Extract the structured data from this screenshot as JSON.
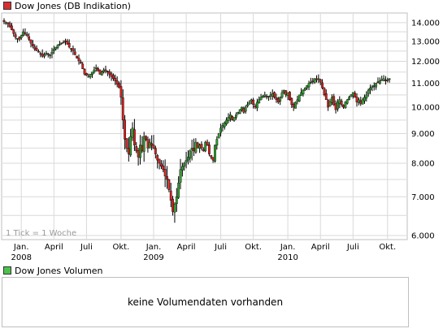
{
  "main_legend": {
    "label": "Dow Jones (DB Indikation)",
    "color": "#d83030"
  },
  "volume_legend": {
    "label": "Dow Jones Volumen",
    "color": "#4cc24c"
  },
  "volume_panel": {
    "message": "keine Volumendaten vorhanden"
  },
  "chart_note": "1 Tick = 1 Woche",
  "colors": {
    "up": "#2e9e2e",
    "down": "#d42020",
    "wick": "#000000",
    "grid": "#d9d9d9"
  },
  "chart_data": {
    "type": "candlestick",
    "title": "Dow Jones (DB Indikation)",
    "y_scale": "log",
    "ylim": [
      6000,
      14500
    ],
    "y_ticks": [
      {
        "value": 14000,
        "label": "14.000"
      },
      {
        "value": 13000,
        "label": "13.000"
      },
      {
        "value": 12000,
        "label": "12.000"
      },
      {
        "value": 11000,
        "label": "11.000"
      },
      {
        "value": 10000,
        "label": "10.000"
      },
      {
        "value": 9000,
        "label": "9.000"
      },
      {
        "value": 8000,
        "label": "8.000"
      },
      {
        "value": 7000,
        "label": "7.000"
      },
      {
        "value": 6000,
        "label": "6.000"
      }
    ],
    "x_ticks": [
      {
        "week": 9,
        "label": "Jan.",
        "year": "2008"
      },
      {
        "week": 26,
        "label": "April",
        "year": ""
      },
      {
        "week": 43,
        "label": "Juli",
        "year": ""
      },
      {
        "week": 61,
        "label": "Okt.",
        "year": ""
      },
      {
        "week": 78,
        "label": "Jan.",
        "year": "2009"
      },
      {
        "week": 95,
        "label": "April",
        "year": ""
      },
      {
        "week": 113,
        "label": "Juli",
        "year": ""
      },
      {
        "week": 130,
        "label": "Okt.",
        "year": ""
      },
      {
        "week": 148,
        "label": "Jan.",
        "year": "2010"
      },
      {
        "week": 165,
        "label": "April",
        "year": ""
      },
      {
        "week": 182,
        "label": "Juli",
        "year": ""
      },
      {
        "week": 200,
        "label": "Okt.",
        "year": ""
      }
    ],
    "grid": true,
    "week_range": [
      0,
      209
    ],
    "series_close": [
      [
        0,
        14050
      ],
      [
        2,
        13950
      ],
      [
        4,
        13600
      ],
      [
        6,
        13200
      ],
      [
        8,
        13100
      ],
      [
        10,
        13500
      ],
      [
        12,
        13300
      ],
      [
        14,
        12900
      ],
      [
        16,
        12600
      ],
      [
        18,
        12450
      ],
      [
        20,
        12250
      ],
      [
        22,
        12400
      ],
      [
        24,
        12300
      ],
      [
        26,
        12600
      ],
      [
        28,
        12800
      ],
      [
        30,
        12900
      ],
      [
        32,
        13000
      ],
      [
        34,
        12700
      ],
      [
        36,
        12500
      ],
      [
        38,
        12150
      ],
      [
        40,
        11900
      ],
      [
        42,
        11400
      ],
      [
        44,
        11300
      ],
      [
        46,
        11500
      ],
      [
        48,
        11700
      ],
      [
        50,
        11400
      ],
      [
        52,
        11600
      ],
      [
        54,
        11500
      ],
      [
        56,
        11300
      ],
      [
        58,
        11100
      ],
      [
        60,
        10800
      ],
      [
        61,
        10400
      ],
      [
        62,
        9500
      ],
      [
        63,
        8800
      ],
      [
        64,
        8500
      ],
      [
        65,
        8300
      ],
      [
        66,
        8900
      ],
      [
        67,
        9200
      ],
      [
        68,
        8600
      ],
      [
        69,
        8400
      ],
      [
        70,
        8200
      ],
      [
        71,
        8600
      ],
      [
        72,
        8400
      ],
      [
        73,
        8900
      ],
      [
        74,
        8800
      ],
      [
        75,
        8500
      ],
      [
        76,
        8700
      ],
      [
        77,
        8600
      ],
      [
        78,
        8500
      ],
      [
        79,
        8300
      ],
      [
        80,
        8100
      ],
      [
        81,
        8000
      ],
      [
        82,
        7900
      ],
      [
        83,
        7800
      ],
      [
        84,
        7600
      ],
      [
        85,
        7500
      ],
      [
        86,
        7200
      ],
      [
        87,
        6900
      ],
      [
        88,
        6600
      ],
      [
        89,
        6800
      ],
      [
        90,
        7000
      ],
      [
        91,
        7400
      ],
      [
        92,
        7800
      ],
      [
        93,
        7900
      ],
      [
        94,
        8000
      ],
      [
        95,
        8100
      ],
      [
        96,
        8200
      ],
      [
        97,
        8400
      ],
      [
        98,
        8500
      ],
      [
        99,
        8400
      ],
      [
        100,
        8700
      ],
      [
        101,
        8500
      ],
      [
        102,
        8600
      ],
      [
        103,
        8500
      ],
      [
        104,
        8400
      ],
      [
        105,
        8700
      ],
      [
        106,
        8600
      ],
      [
        107,
        8300
      ],
      [
        108,
        8200
      ],
      [
        109,
        8100
      ],
      [
        110,
        8600
      ],
      [
        111,
        8800
      ],
      [
        112,
        9000
      ],
      [
        113,
        9200
      ],
      [
        114,
        9300
      ],
      [
        115,
        9400
      ],
      [
        116,
        9500
      ],
      [
        117,
        9600
      ],
      [
        118,
        9700
      ],
      [
        119,
        9500
      ],
      [
        120,
        9600
      ],
      [
        121,
        9700
      ],
      [
        122,
        9800
      ],
      [
        123,
        9900
      ],
      [
        124,
        10000
      ],
      [
        125,
        9800
      ],
      [
        126,
        10000
      ],
      [
        127,
        10100
      ],
      [
        128,
        10200
      ],
      [
        129,
        10300
      ],
      [
        130,
        10100
      ],
      [
        131,
        10000
      ],
      [
        132,
        10200
      ],
      [
        133,
        10300
      ],
      [
        134,
        10400
      ],
      [
        135,
        10450
      ],
      [
        136,
        10500
      ],
      [
        137,
        10400
      ],
      [
        138,
        10450
      ],
      [
        139,
        10500
      ],
      [
        140,
        10550
      ],
      [
        141,
        10400
      ],
      [
        142,
        10300
      ],
      [
        143,
        10200
      ],
      [
        144,
        10400
      ],
      [
        145,
        10600
      ],
      [
        146,
        10700
      ],
      [
        147,
        10500
      ],
      [
        148,
        10600
      ],
      [
        149,
        10300
      ],
      [
        150,
        10100
      ],
      [
        151,
        10000
      ],
      [
        152,
        10200
      ],
      [
        153,
        10300
      ],
      [
        154,
        10500
      ],
      [
        155,
        10600
      ],
      [
        156,
        10700
      ],
      [
        157,
        10800
      ],
      [
        158,
        10900
      ],
      [
        159,
        11000
      ],
      [
        160,
        11050
      ],
      [
        161,
        11100
      ],
      [
        162,
        11200
      ],
      [
        163,
        11150
      ],
      [
        164,
        11200
      ],
      [
        165,
        11050
      ],
      [
        166,
        10800
      ],
      [
        167,
        10500
      ],
      [
        168,
        10300
      ],
      [
        169,
        10000
      ],
      [
        170,
        10200
      ],
      [
        171,
        10400
      ],
      [
        172,
        10100
      ],
      [
        173,
        9900
      ],
      [
        174,
        10200
      ],
      [
        175,
        10300
      ],
      [
        176,
        10100
      ],
      [
        177,
        10000
      ],
      [
        178,
        10200
      ],
      [
        179,
        10300
      ],
      [
        180,
        10400
      ],
      [
        181,
        10500
      ],
      [
        182,
        10600
      ],
      [
        183,
        10400
      ],
      [
        184,
        10200
      ],
      [
        185,
        10300
      ],
      [
        186,
        10150
      ],
      [
        187,
        10300
      ],
      [
        188,
        10400
      ],
      [
        189,
        10500
      ],
      [
        190,
        10700
      ],
      [
        191,
        10800
      ],
      [
        192,
        10850
      ],
      [
        193,
        10900
      ],
      [
        194,
        11000
      ],
      [
        195,
        11050
      ],
      [
        196,
        11100
      ],
      [
        197,
        11150
      ],
      [
        198,
        11200
      ],
      [
        199,
        11100
      ],
      [
        200,
        11150
      ],
      [
        201,
        11200
      ]
    ]
  }
}
